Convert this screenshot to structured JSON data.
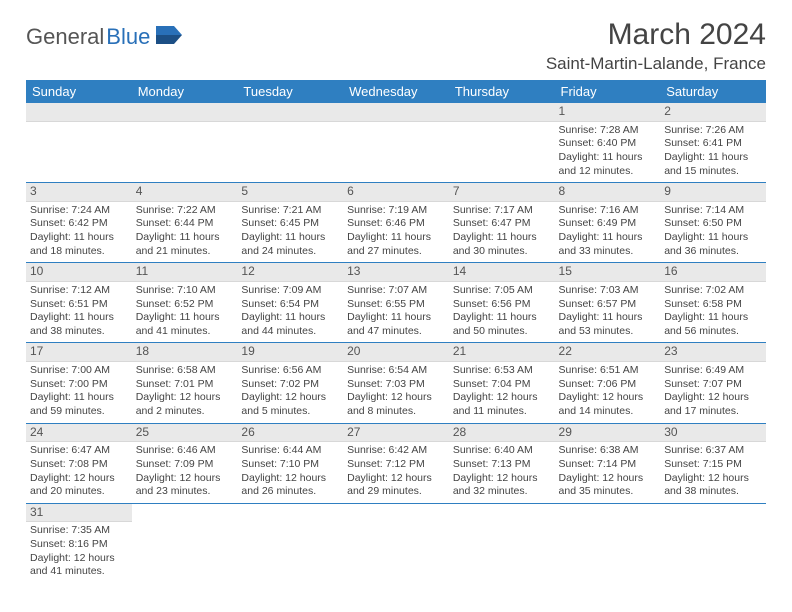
{
  "brand": {
    "part1": "General",
    "part2": "Blue"
  },
  "title": "March 2024",
  "location": "Saint-Martin-Lalande, France",
  "colors": {
    "accent": "#2f7fc1",
    "header_gray": "#e9e9e9",
    "text": "#444444"
  },
  "weekdays": [
    "Sunday",
    "Monday",
    "Tuesday",
    "Wednesday",
    "Thursday",
    "Friday",
    "Saturday"
  ],
  "grid": [
    [
      null,
      null,
      null,
      null,
      null,
      {
        "n": "1",
        "sr": "Sunrise: 7:28 AM",
        "ss": "Sunset: 6:40 PM",
        "dl": "Daylight: 11 hours and 12 minutes."
      },
      {
        "n": "2",
        "sr": "Sunrise: 7:26 AM",
        "ss": "Sunset: 6:41 PM",
        "dl": "Daylight: 11 hours and 15 minutes."
      }
    ],
    [
      {
        "n": "3",
        "sr": "Sunrise: 7:24 AM",
        "ss": "Sunset: 6:42 PM",
        "dl": "Daylight: 11 hours and 18 minutes."
      },
      {
        "n": "4",
        "sr": "Sunrise: 7:22 AM",
        "ss": "Sunset: 6:44 PM",
        "dl": "Daylight: 11 hours and 21 minutes."
      },
      {
        "n": "5",
        "sr": "Sunrise: 7:21 AM",
        "ss": "Sunset: 6:45 PM",
        "dl": "Daylight: 11 hours and 24 minutes."
      },
      {
        "n": "6",
        "sr": "Sunrise: 7:19 AM",
        "ss": "Sunset: 6:46 PM",
        "dl": "Daylight: 11 hours and 27 minutes."
      },
      {
        "n": "7",
        "sr": "Sunrise: 7:17 AM",
        "ss": "Sunset: 6:47 PM",
        "dl": "Daylight: 11 hours and 30 minutes."
      },
      {
        "n": "8",
        "sr": "Sunrise: 7:16 AM",
        "ss": "Sunset: 6:49 PM",
        "dl": "Daylight: 11 hours and 33 minutes."
      },
      {
        "n": "9",
        "sr": "Sunrise: 7:14 AM",
        "ss": "Sunset: 6:50 PM",
        "dl": "Daylight: 11 hours and 36 minutes."
      }
    ],
    [
      {
        "n": "10",
        "sr": "Sunrise: 7:12 AM",
        "ss": "Sunset: 6:51 PM",
        "dl": "Daylight: 11 hours and 38 minutes."
      },
      {
        "n": "11",
        "sr": "Sunrise: 7:10 AM",
        "ss": "Sunset: 6:52 PM",
        "dl": "Daylight: 11 hours and 41 minutes."
      },
      {
        "n": "12",
        "sr": "Sunrise: 7:09 AM",
        "ss": "Sunset: 6:54 PM",
        "dl": "Daylight: 11 hours and 44 minutes."
      },
      {
        "n": "13",
        "sr": "Sunrise: 7:07 AM",
        "ss": "Sunset: 6:55 PM",
        "dl": "Daylight: 11 hours and 47 minutes."
      },
      {
        "n": "14",
        "sr": "Sunrise: 7:05 AM",
        "ss": "Sunset: 6:56 PM",
        "dl": "Daylight: 11 hours and 50 minutes."
      },
      {
        "n": "15",
        "sr": "Sunrise: 7:03 AM",
        "ss": "Sunset: 6:57 PM",
        "dl": "Daylight: 11 hours and 53 minutes."
      },
      {
        "n": "16",
        "sr": "Sunrise: 7:02 AM",
        "ss": "Sunset: 6:58 PM",
        "dl": "Daylight: 11 hours and 56 minutes."
      }
    ],
    [
      {
        "n": "17",
        "sr": "Sunrise: 7:00 AM",
        "ss": "Sunset: 7:00 PM",
        "dl": "Daylight: 11 hours and 59 minutes."
      },
      {
        "n": "18",
        "sr": "Sunrise: 6:58 AM",
        "ss": "Sunset: 7:01 PM",
        "dl": "Daylight: 12 hours and 2 minutes."
      },
      {
        "n": "19",
        "sr": "Sunrise: 6:56 AM",
        "ss": "Sunset: 7:02 PM",
        "dl": "Daylight: 12 hours and 5 minutes."
      },
      {
        "n": "20",
        "sr": "Sunrise: 6:54 AM",
        "ss": "Sunset: 7:03 PM",
        "dl": "Daylight: 12 hours and 8 minutes."
      },
      {
        "n": "21",
        "sr": "Sunrise: 6:53 AM",
        "ss": "Sunset: 7:04 PM",
        "dl": "Daylight: 12 hours and 11 minutes."
      },
      {
        "n": "22",
        "sr": "Sunrise: 6:51 AM",
        "ss": "Sunset: 7:06 PM",
        "dl": "Daylight: 12 hours and 14 minutes."
      },
      {
        "n": "23",
        "sr": "Sunrise: 6:49 AM",
        "ss": "Sunset: 7:07 PM",
        "dl": "Daylight: 12 hours and 17 minutes."
      }
    ],
    [
      {
        "n": "24",
        "sr": "Sunrise: 6:47 AM",
        "ss": "Sunset: 7:08 PM",
        "dl": "Daylight: 12 hours and 20 minutes."
      },
      {
        "n": "25",
        "sr": "Sunrise: 6:46 AM",
        "ss": "Sunset: 7:09 PM",
        "dl": "Daylight: 12 hours and 23 minutes."
      },
      {
        "n": "26",
        "sr": "Sunrise: 6:44 AM",
        "ss": "Sunset: 7:10 PM",
        "dl": "Daylight: 12 hours and 26 minutes."
      },
      {
        "n": "27",
        "sr": "Sunrise: 6:42 AM",
        "ss": "Sunset: 7:12 PM",
        "dl": "Daylight: 12 hours and 29 minutes."
      },
      {
        "n": "28",
        "sr": "Sunrise: 6:40 AM",
        "ss": "Sunset: 7:13 PM",
        "dl": "Daylight: 12 hours and 32 minutes."
      },
      {
        "n": "29",
        "sr": "Sunrise: 6:38 AM",
        "ss": "Sunset: 7:14 PM",
        "dl": "Daylight: 12 hours and 35 minutes."
      },
      {
        "n": "30",
        "sr": "Sunrise: 6:37 AM",
        "ss": "Sunset: 7:15 PM",
        "dl": "Daylight: 12 hours and 38 minutes."
      }
    ],
    [
      {
        "n": "31",
        "sr": "Sunrise: 7:35 AM",
        "ss": "Sunset: 8:16 PM",
        "dl": "Daylight: 12 hours and 41 minutes."
      },
      null,
      null,
      null,
      null,
      null,
      null
    ]
  ]
}
